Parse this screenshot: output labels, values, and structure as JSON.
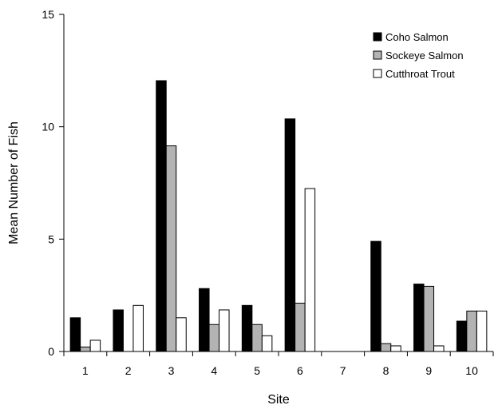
{
  "chart_data": {
    "type": "bar",
    "title": "",
    "xlabel": "Site",
    "ylabel": "Mean Number of Fish",
    "categories": [
      "1",
      "2",
      "3",
      "4",
      "5",
      "6",
      "7",
      "8",
      "9",
      "10"
    ],
    "ylim": [
      0,
      15
    ],
    "yticks": [
      "0",
      "5",
      "10",
      "15"
    ],
    "grid": false,
    "legend_position": "top-right",
    "series": [
      {
        "name": "Coho Salmon",
        "color": "#000000",
        "values": [
          1.5,
          1.85,
          12.05,
          2.8,
          2.05,
          10.35,
          0,
          4.9,
          3.0,
          1.35
        ]
      },
      {
        "name": "Sockeye Salmon",
        "color": "#b3b3b3",
        "values": [
          0.2,
          0,
          9.15,
          1.2,
          1.2,
          2.15,
          0,
          0.35,
          2.9,
          1.8
        ]
      },
      {
        "name": "Cutthroat Trout",
        "color": "#ffffff",
        "values": [
          0.5,
          2.05,
          1.5,
          1.85,
          0.7,
          7.25,
          0,
          0.25,
          0.25,
          1.8
        ]
      }
    ]
  }
}
